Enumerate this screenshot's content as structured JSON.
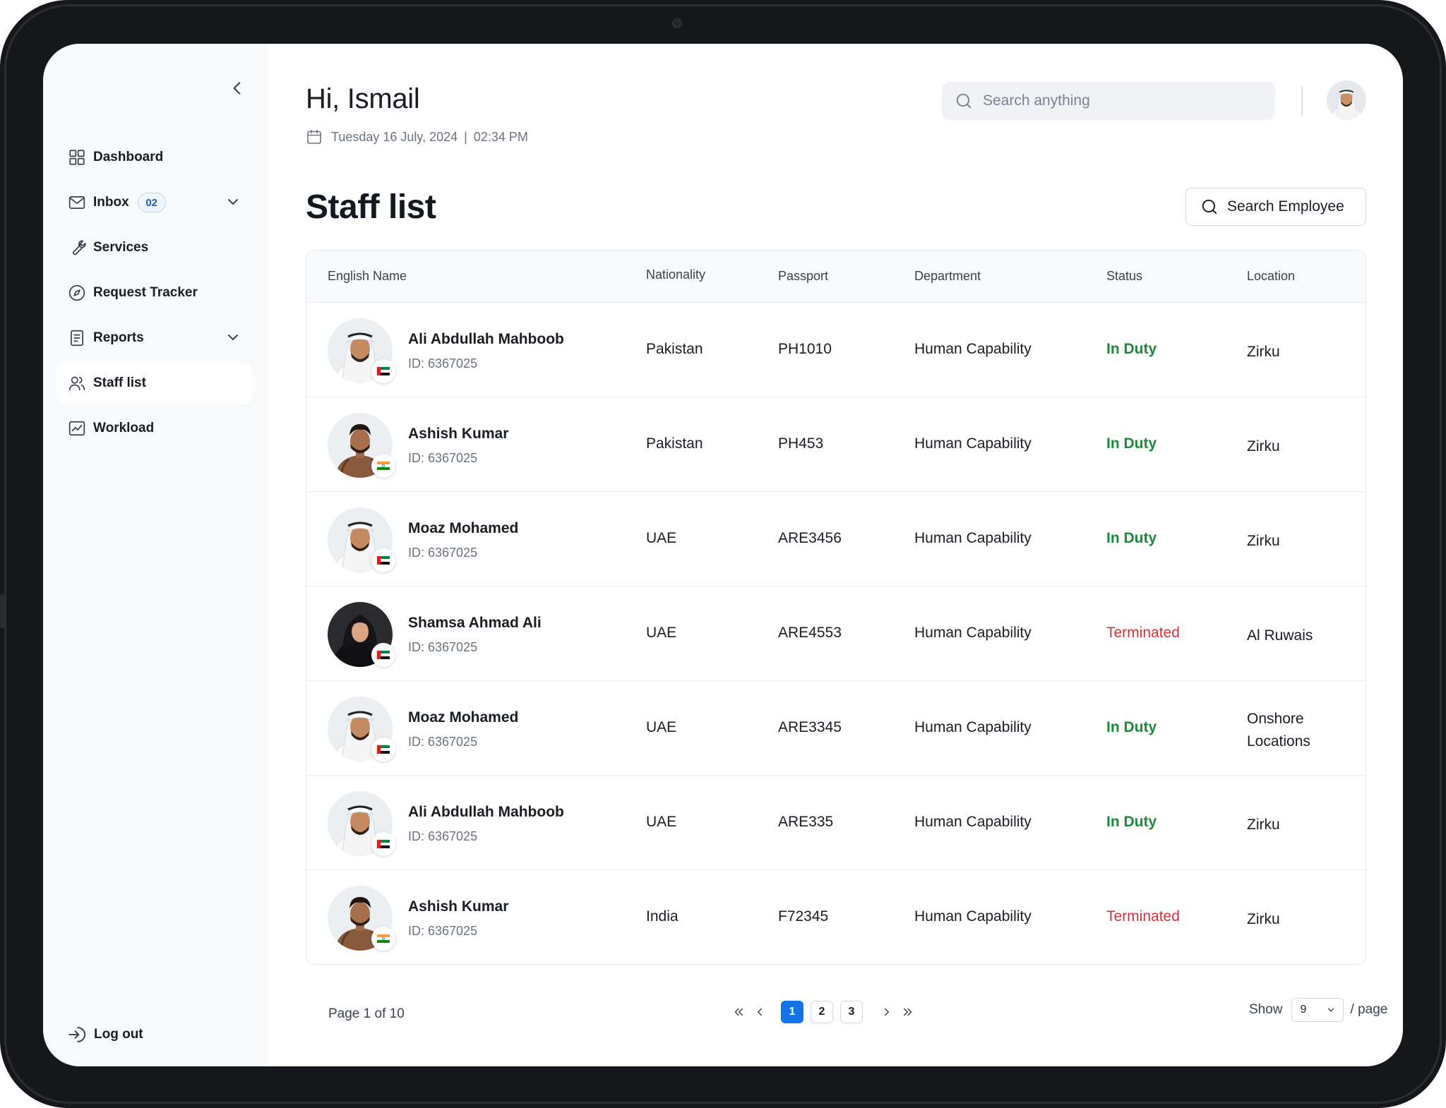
{
  "header": {
    "greeting": "Hi, Ismail",
    "date": "Tuesday 16 July, 2024",
    "separator": "|",
    "time": "02:34 PM",
    "search_placeholder": "Search anything"
  },
  "sidebar": {
    "items": [
      {
        "label": "Dashboard",
        "icon": "grid-icon"
      },
      {
        "label": "Inbox",
        "icon": "mail-icon",
        "badge": "02"
      },
      {
        "label": "Services",
        "icon": "wrench-icon"
      },
      {
        "label": "Request Tracker",
        "icon": "compass-icon"
      },
      {
        "label": "Reports",
        "icon": "document-icon"
      },
      {
        "label": "Staff list",
        "icon": "users-icon",
        "active": true
      },
      {
        "label": "Workload",
        "icon": "chart-icon"
      }
    ],
    "logout": "Log out"
  },
  "page": {
    "title": "Staff list",
    "search_employee": "Search Employee"
  },
  "table": {
    "columns": [
      "English Name",
      "Nationality",
      "Passport",
      "Department",
      "Status",
      "Location"
    ],
    "rows": [
      {
        "name": "Ali Abdullah Mahboob",
        "id": "ID: 6367025",
        "nationality": "Pakistan",
        "passport": "PH1010",
        "department": "Human Capability",
        "status": "In Duty",
        "location": "Zirku",
        "flag": "uae-flag-icon",
        "avatar": "man-ghutra"
      },
      {
        "name": "Ashish Kumar",
        "id": "ID: 6367025",
        "nationality": "Pakistan",
        "passport": "PH453",
        "department": "Human Capability",
        "status": "In Duty",
        "location": "Zirku",
        "flag": "india-flag-icon",
        "avatar": "man-casual"
      },
      {
        "name": "Moaz Mohamed",
        "id": "ID: 6367025",
        "nationality": "UAE",
        "passport": "ARE3456",
        "department": "Human Capability",
        "status": "In Duty",
        "location": "Zirku",
        "flag": "uae-flag-icon",
        "avatar": "man-ghutra"
      },
      {
        "name": "Shamsa Ahmad Ali",
        "id": "ID: 6367025",
        "nationality": "UAE",
        "passport": "ARE4553",
        "department": "Human Capability",
        "status": "Terminated",
        "location": "Al Ruwais",
        "flag": "uae-flag-icon",
        "avatar": "woman-shayla"
      },
      {
        "name": "Moaz Mohamed",
        "id": "ID: 6367025",
        "nationality": "UAE",
        "passport": "ARE3345",
        "department": "Human Capability",
        "status": "In Duty",
        "location": "Onshore Locations",
        "flag": "uae-flag-icon",
        "avatar": "man-ghutra"
      },
      {
        "name": "Ali Abdullah Mahboob",
        "id": "ID: 6367025",
        "nationality": "UAE",
        "passport": "ARE335",
        "department": "Human Capability",
        "status": "In Duty",
        "location": "Zirku",
        "flag": "uae-flag-icon",
        "avatar": "man-ghutra"
      },
      {
        "name": "Ashish Kumar",
        "id": "ID: 6367025",
        "nationality": "India",
        "passport": "F72345",
        "department": "Human Capability",
        "status": "Terminated",
        "location": "Zirku",
        "flag": "india-flag-icon",
        "avatar": "man-casual"
      }
    ]
  },
  "pagination": {
    "label": "Page 1 of 10",
    "pages": [
      "1",
      "2",
      "3"
    ],
    "current": "1",
    "show_label": "Show",
    "per_page": "9",
    "per_page_suffix": "/ page"
  },
  "colors": {
    "accent": "#1473e6",
    "status_ok": "#1d8a3a",
    "status_bad": "#d0343b",
    "sidebar_bg": "#f8f9fb"
  }
}
